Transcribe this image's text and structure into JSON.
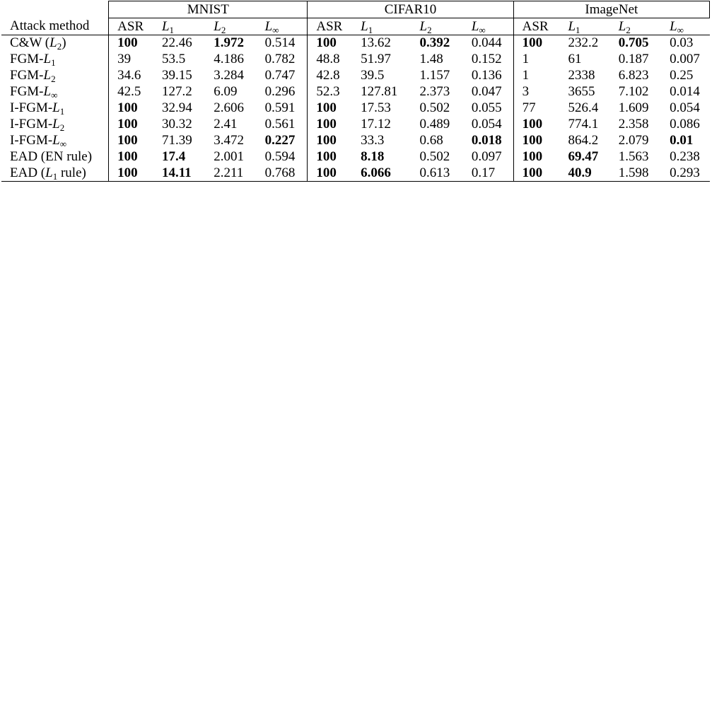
{
  "table": {
    "method_header": "Attack method",
    "datasets": [
      "MNIST",
      "CIFAR10",
      "ImageNet"
    ],
    "metrics": [
      {
        "base": "ASR",
        "sub": ""
      },
      {
        "base": "L",
        "sub": "1"
      },
      {
        "base": "L",
        "sub": "2"
      },
      {
        "base": "L",
        "sub": "∞"
      }
    ],
    "rows": [
      {
        "method": {
          "pre": "C&W (",
          "base": "L",
          "sub": "2",
          "post": ")"
        },
        "cells": [
          {
            "v": "100",
            "b": true
          },
          {
            "v": "22.46",
            "b": false
          },
          {
            "v": "1.972",
            "b": true
          },
          {
            "v": "0.514",
            "b": false
          },
          {
            "v": "100",
            "b": true
          },
          {
            "v": "13.62",
            "b": false
          },
          {
            "v": "0.392",
            "b": true
          },
          {
            "v": "0.044",
            "b": false
          },
          {
            "v": "100",
            "b": true
          },
          {
            "v": "232.2",
            "b": false
          },
          {
            "v": "0.705",
            "b": true
          },
          {
            "v": "0.03",
            "b": false
          }
        ]
      },
      {
        "method": {
          "pre": "FGM-",
          "base": "L",
          "sub": "1",
          "post": ""
        },
        "cells": [
          {
            "v": "39",
            "b": false
          },
          {
            "v": "53.5",
            "b": false
          },
          {
            "v": "4.186",
            "b": false
          },
          {
            "v": "0.782",
            "b": false
          },
          {
            "v": "48.8",
            "b": false
          },
          {
            "v": "51.97",
            "b": false
          },
          {
            "v": "1.48",
            "b": false
          },
          {
            "v": "0.152",
            "b": false
          },
          {
            "v": "1",
            "b": false
          },
          {
            "v": "61",
            "b": false
          },
          {
            "v": "0.187",
            "b": false
          },
          {
            "v": "0.007",
            "b": false
          }
        ]
      },
      {
        "method": {
          "pre": "FGM-",
          "base": "L",
          "sub": "2",
          "post": ""
        },
        "cells": [
          {
            "v": "34.6",
            "b": false
          },
          {
            "v": "39.15",
            "b": false
          },
          {
            "v": "3.284",
            "b": false
          },
          {
            "v": "0.747",
            "b": false
          },
          {
            "v": "42.8",
            "b": false
          },
          {
            "v": "39.5",
            "b": false
          },
          {
            "v": "1.157",
            "b": false
          },
          {
            "v": "0.136",
            "b": false
          },
          {
            "v": "1",
            "b": false
          },
          {
            "v": "2338",
            "b": false
          },
          {
            "v": "6.823",
            "b": false
          },
          {
            "v": "0.25",
            "b": false
          }
        ]
      },
      {
        "method": {
          "pre": "FGM-",
          "base": "L",
          "sub": "∞",
          "post": ""
        },
        "cells": [
          {
            "v": "42.5",
            "b": false
          },
          {
            "v": "127.2",
            "b": false
          },
          {
            "v": "6.09",
            "b": false
          },
          {
            "v": "0.296",
            "b": false
          },
          {
            "v": "52.3",
            "b": false
          },
          {
            "v": "127.81",
            "b": false
          },
          {
            "v": "2.373",
            "b": false
          },
          {
            "v": "0.047",
            "b": false
          },
          {
            "v": "3",
            "b": false
          },
          {
            "v": "3655",
            "b": false
          },
          {
            "v": "7.102",
            "b": false
          },
          {
            "v": "0.014",
            "b": false
          }
        ]
      },
      {
        "method": {
          "pre": "I-FGM-",
          "base": "L",
          "sub": "1",
          "post": ""
        },
        "cells": [
          {
            "v": "100",
            "b": true
          },
          {
            "v": "32.94",
            "b": false
          },
          {
            "v": "2.606",
            "b": false
          },
          {
            "v": "0.591",
            "b": false
          },
          {
            "v": "100",
            "b": true
          },
          {
            "v": "17.53",
            "b": false
          },
          {
            "v": "0.502",
            "b": false
          },
          {
            "v": "0.055",
            "b": false
          },
          {
            "v": "77",
            "b": false
          },
          {
            "v": "526.4",
            "b": false
          },
          {
            "v": "1.609",
            "b": false
          },
          {
            "v": "0.054",
            "b": false
          }
        ]
      },
      {
        "method": {
          "pre": "I-FGM-",
          "base": "L",
          "sub": "2",
          "post": ""
        },
        "cells": [
          {
            "v": "100",
            "b": true
          },
          {
            "v": "30.32",
            "b": false
          },
          {
            "v": "2.41",
            "b": false
          },
          {
            "v": "0.561",
            "b": false
          },
          {
            "v": "100",
            "b": true
          },
          {
            "v": "17.12",
            "b": false
          },
          {
            "v": "0.489",
            "b": false
          },
          {
            "v": "0.054",
            "b": false
          },
          {
            "v": "100",
            "b": true
          },
          {
            "v": "774.1",
            "b": false
          },
          {
            "v": "2.358",
            "b": false
          },
          {
            "v": "0.086",
            "b": false
          }
        ]
      },
      {
        "method": {
          "pre": "I-FGM-",
          "base": "L",
          "sub": "∞",
          "post": ""
        },
        "cells": [
          {
            "v": "100",
            "b": true
          },
          {
            "v": "71.39",
            "b": false
          },
          {
            "v": "3.472",
            "b": false
          },
          {
            "v": "0.227",
            "b": true
          },
          {
            "v": "100",
            "b": true
          },
          {
            "v": "33.3",
            "b": false
          },
          {
            "v": "0.68",
            "b": false
          },
          {
            "v": "0.018",
            "b": true
          },
          {
            "v": "100",
            "b": true
          },
          {
            "v": "864.2",
            "b": false
          },
          {
            "v": "2.079",
            "b": false
          },
          {
            "v": "0.01",
            "b": true
          }
        ]
      },
      {
        "method": {
          "pre": "EAD (EN rule)",
          "base": "",
          "sub": "",
          "post": ""
        },
        "cells": [
          {
            "v": "100",
            "b": true
          },
          {
            "v": "17.4",
            "b": true
          },
          {
            "v": "2.001",
            "b": false
          },
          {
            "v": "0.594",
            "b": false
          },
          {
            "v": "100",
            "b": true
          },
          {
            "v": "8.18",
            "b": true
          },
          {
            "v": "0.502",
            "b": false
          },
          {
            "v": "0.097",
            "b": false
          },
          {
            "v": "100",
            "b": true
          },
          {
            "v": "69.47",
            "b": true
          },
          {
            "v": "1.563",
            "b": false
          },
          {
            "v": "0.238",
            "b": false
          }
        ]
      },
      {
        "method": {
          "pre": "EAD (",
          "base": "L",
          "sub": "1",
          "post": " rule)"
        },
        "cells": [
          {
            "v": "100",
            "b": true
          },
          {
            "v": "14.11",
            "b": true
          },
          {
            "v": "2.211",
            "b": false
          },
          {
            "v": "0.768",
            "b": false
          },
          {
            "v": "100",
            "b": true
          },
          {
            "v": "6.066",
            "b": true
          },
          {
            "v": "0.613",
            "b": false
          },
          {
            "v": "0.17",
            "b": false
          },
          {
            "v": "100",
            "b": true
          },
          {
            "v": "40.9",
            "b": true
          },
          {
            "v": "1.598",
            "b": false
          },
          {
            "v": "0.293",
            "b": false
          }
        ]
      }
    ]
  }
}
